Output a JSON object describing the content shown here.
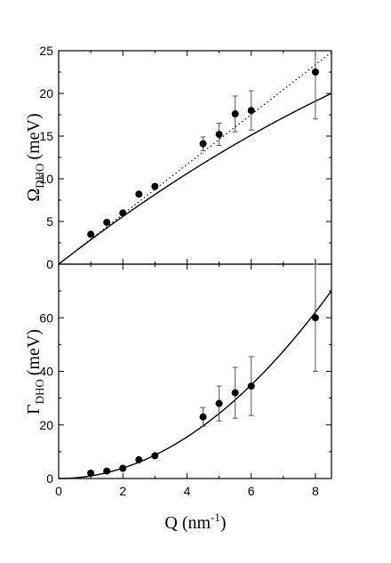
{
  "chart_data": [
    {
      "type": "scatter",
      "title": "",
      "ylabel": {
        "symbol": "Ω",
        "subscript": "DHO",
        "unit": "(meV)"
      },
      "xlim": [
        0,
        8.5
      ],
      "ylim": [
        0,
        25
      ],
      "yticks": [
        "0",
        "5",
        "10",
        "15",
        "20",
        "25"
      ],
      "grid": false,
      "series": [
        {
          "kind": "points",
          "x": [
            1.0,
            1.5,
            2.0,
            2.5,
            3.0,
            4.5,
            5.0,
            5.5,
            6.0,
            8.0
          ],
          "y": [
            3.5,
            4.9,
            6.0,
            8.2,
            9.1,
            14.1,
            15.2,
            17.6,
            18.0,
            22.5
          ],
          "yerr": [
            0,
            0,
            0,
            0,
            0,
            0.8,
            1.3,
            2.1,
            2.3,
            5.5
          ]
        },
        {
          "kind": "solid-line",
          "function": "2.92*Q - 0.0668*Q^2"
        },
        {
          "kind": "dotted-line",
          "function": "2.92*Q"
        }
      ]
    },
    {
      "type": "scatter",
      "title": "",
      "xlabel": {
        "symbol": "Q",
        "unit": "(nm",
        "superscript": "-1",
        "close": ")"
      },
      "ylabel": {
        "symbol": "Γ",
        "subscript": "DHO",
        "unit": "(meV)"
      },
      "xlim": [
        0,
        8.5
      ],
      "ylim": [
        0,
        80
      ],
      "xticks": [
        "0",
        "2",
        "4",
        "6",
        "8"
      ],
      "yticks": [
        "0",
        "20",
        "40",
        "60"
      ],
      "grid": false,
      "series": [
        {
          "kind": "points",
          "x": [
            1.0,
            1.5,
            2.0,
            2.5,
            3.0,
            4.5,
            5.0,
            5.5,
            6.0,
            8.0
          ],
          "y": [
            2.0,
            2.8,
            3.8,
            7.0,
            8.5,
            23.0,
            28.0,
            32.0,
            34.5,
            60.0
          ],
          "yerr": [
            0,
            0,
            0,
            0,
            0,
            3.5,
            6.5,
            9.5,
            11.0,
            20.0
          ]
        },
        {
          "kind": "solid-line",
          "function": "0.97*Q^2"
        }
      ]
    }
  ],
  "colors": {
    "ink": "#000000",
    "background": "#ffffff"
  }
}
